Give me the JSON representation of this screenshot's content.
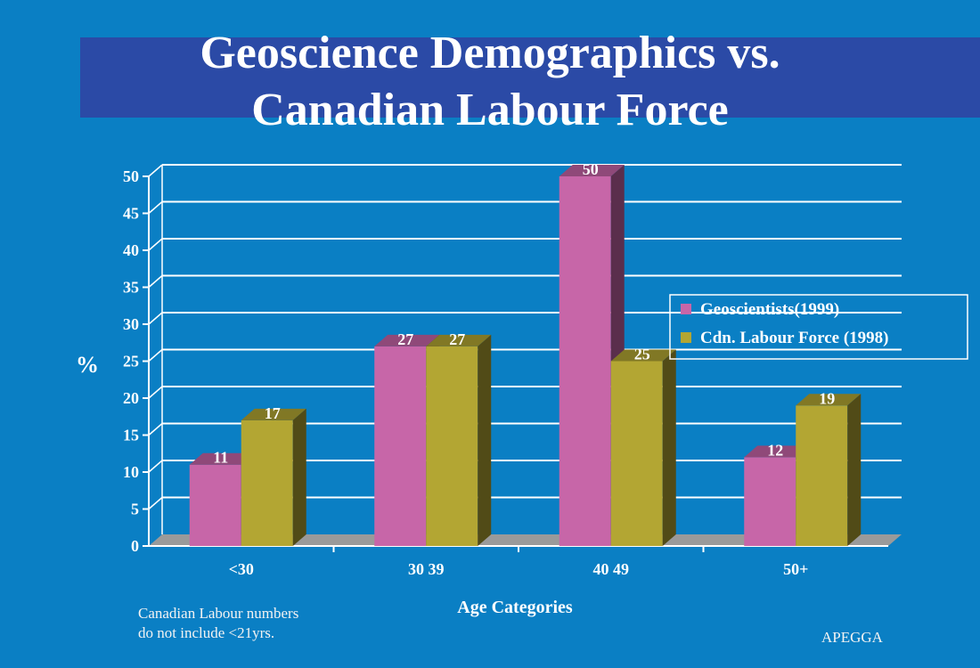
{
  "slide": {
    "title_line1": "Geoscience Demographics vs.",
    "title_line2": "Canadian Labour Force",
    "note_line1": "Canadian Labour numbers",
    "note_line2": "do not include <21yrs.",
    "credit": "APEGGA"
  },
  "colors": {
    "background": "#0a7fc4",
    "title_band": "#2b4aa6",
    "geoscientists": "#c766a8",
    "labour_force": "#b3a633"
  },
  "chart_data": {
    "type": "bar",
    "title": "",
    "xlabel": "Age Categories",
    "ylabel": "%",
    "ylim": [
      0,
      50
    ],
    "yticks": [
      0,
      5,
      10,
      15,
      20,
      25,
      30,
      35,
      40,
      45,
      50
    ],
    "grid": true,
    "legend_position": "right",
    "categories": [
      "<30",
      "30 39",
      "40 49",
      "50+"
    ],
    "series": [
      {
        "name": "Geoscientists(1999)",
        "values": [
          11,
          27,
          50,
          12
        ]
      },
      {
        "name": "Cdn. Labour Force (1998)",
        "values": [
          17,
          27,
          25,
          19
        ]
      }
    ]
  }
}
